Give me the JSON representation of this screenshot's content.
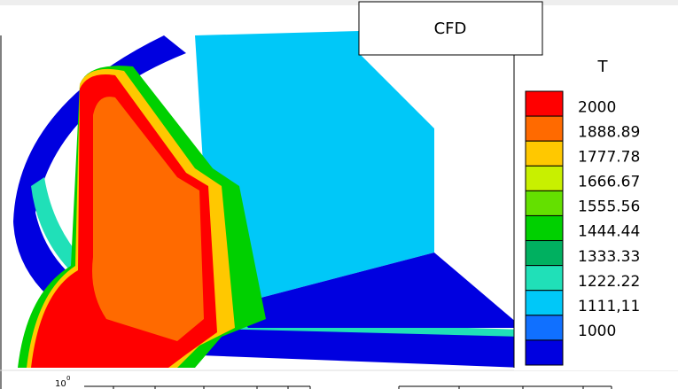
{
  "label_box": "CFD",
  "legend": {
    "title": "T",
    "levels": [
      "2000",
      "1888.89",
      "1777.78",
      "1666.67",
      "1555.56",
      "1444.44",
      "1333.33",
      "1222.22",
      "1111,11",
      "1000"
    ],
    "colors": [
      "#ff0000",
      "#ff6a00",
      "#ffc800",
      "#c8f000",
      "#64e000",
      "#00d000",
      "#00b060",
      "#20e0b8",
      "#00c8f8",
      "#1070ff",
      "#0000e0"
    ]
  },
  "axis_fragment": {
    "base": "10",
    "exponent": "0"
  }
}
